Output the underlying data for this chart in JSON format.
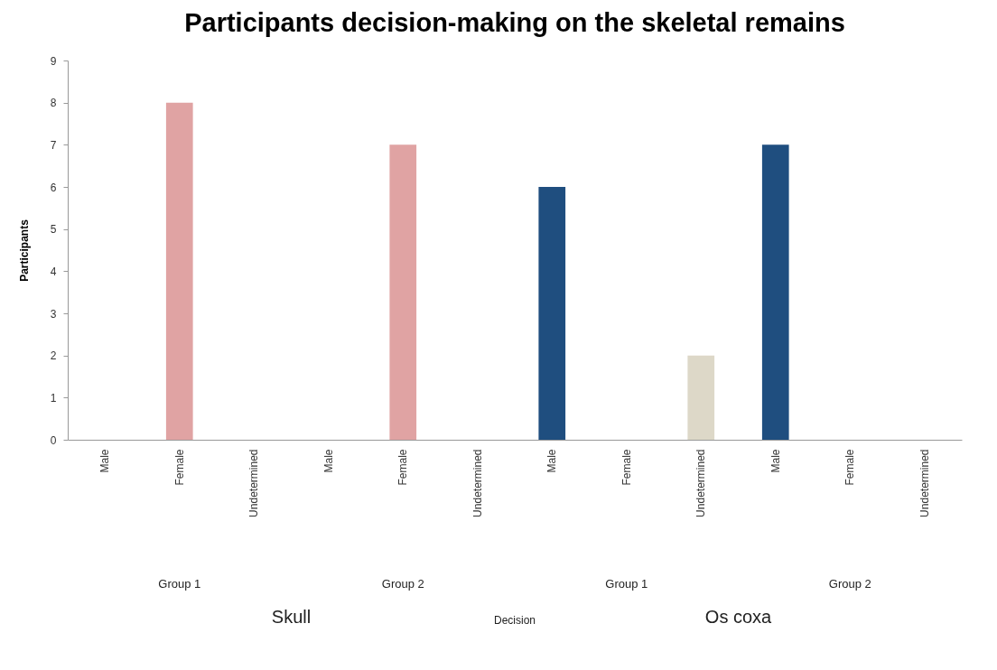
{
  "chart_data": {
    "type": "bar",
    "title": "Participants decision-making on the skeletal remains",
    "ylabel": "Participants",
    "categories": [
      "Male",
      "Female",
      "Undetermined",
      "Male",
      "Female",
      "Undetermined",
      "Male",
      "Female",
      "Undetermined",
      "Male",
      "Female",
      "Undetermined"
    ],
    "values": [
      0,
      8,
      0,
      0,
      7,
      0,
      6,
      0,
      2,
      7,
      0,
      0
    ],
    "colors": [
      "#1f4e7f",
      "#e0a3a3",
      "#ddd8c8",
      "#1f4e7f",
      "#e0a3a3",
      "#ddd8c8",
      "#1f4e7f",
      "#e0a3a3",
      "#ddd8c8",
      "#1f4e7f",
      "#e0a3a3",
      "#ddd8c8"
    ],
    "annotations": [
      "Group 1",
      "Group 2",
      "Group 1",
      "Group 2",
      "Skull",
      "Decision",
      "Os coxa"
    ],
    "ylim": [
      0,
      9
    ],
    "yticks": [
      0,
      1,
      2,
      3,
      4,
      5,
      6,
      7,
      8,
      9
    ],
    "grid": false
  }
}
